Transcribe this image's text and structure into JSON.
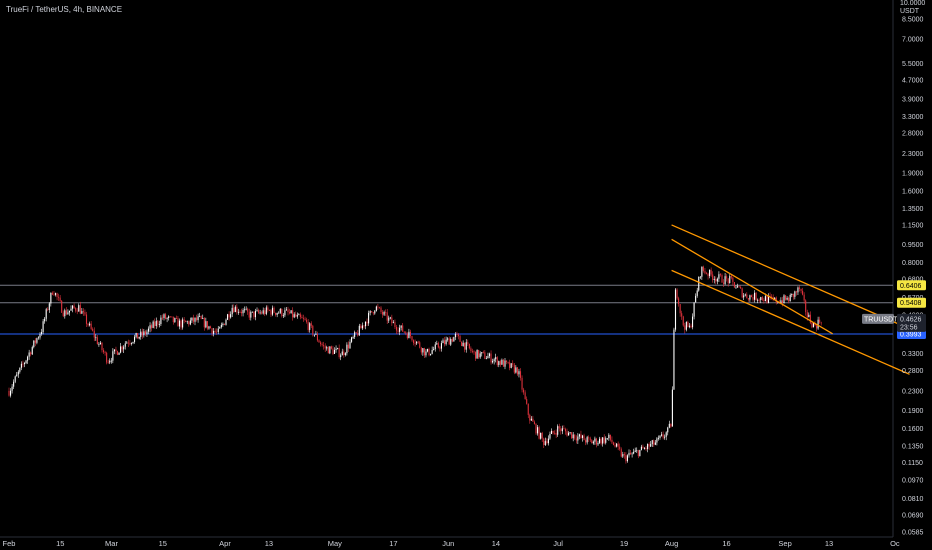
{
  "header": {
    "symbol_title": "TrueFi / TetherUS, 4h, BINANCE"
  },
  "axis": {
    "currency_top": "10.0000",
    "currency_unit": "USDT"
  },
  "chart_data": {
    "type": "candlestick",
    "title": "TrueFi / TetherUS, 4h, BINANCE",
    "y_scale": "log",
    "ylim": [
      0.0585,
      10.0
    ],
    "y_ticks": [
      "8.5000",
      "7.0000",
      "5.5000",
      "4.7000",
      "3.9000",
      "3.3000",
      "2.8000",
      "2.3000",
      "1.9000",
      "1.6000",
      "1.3500",
      "1.1500",
      "0.9500",
      "0.8000",
      "0.6800",
      "0.5700",
      "0.4800",
      "0.4100",
      "0.3300",
      "0.2800",
      "0.2300",
      "0.1900",
      "0.1600",
      "0.1350",
      "0.1150",
      "0.0970",
      "0.0810",
      "0.0690",
      "0.0585"
    ],
    "x_ticks": [
      "Feb",
      "15",
      "Mar",
      "15",
      "Apr",
      "13",
      "May",
      "17",
      "Jun",
      "14",
      "Jul",
      "19",
      "Aug",
      "16",
      "Sep",
      "13",
      "Oc"
    ],
    "close_path": [
      [
        "Feb 1",
        0.23
      ],
      [
        "Feb 5",
        0.3
      ],
      [
        "Feb 10",
        0.42
      ],
      [
        "Feb 13",
        0.62
      ],
      [
        "Feb 16",
        0.49
      ],
      [
        "Feb 20",
        0.52
      ],
      [
        "Feb 24",
        0.4
      ],
      [
        "Feb 28",
        0.31
      ],
      [
        "Mar 5",
        0.37
      ],
      [
        "Mar 10",
        0.4
      ],
      [
        "Mar 15",
        0.47
      ],
      [
        "Mar 20",
        0.44
      ],
      [
        "Mar 25",
        0.46
      ],
      [
        "Mar 30",
        0.4
      ],
      [
        "Apr 3",
        0.52
      ],
      [
        "Apr 8",
        0.48
      ],
      [
        "Apr 13",
        0.5
      ],
      [
        "Apr 18",
        0.49
      ],
      [
        "Apr 23",
        0.45
      ],
      [
        "Apr 28",
        0.35
      ],
      [
        "May 3",
        0.33
      ],
      [
        "May 8",
        0.42
      ],
      [
        "May 12",
        0.52
      ],
      [
        "May 17",
        0.44
      ],
      [
        "May 22",
        0.39
      ],
      [
        "May 26",
        0.33
      ],
      [
        "May 30",
        0.36
      ],
      [
        "Jun 3",
        0.39
      ],
      [
        "Jun 8",
        0.33
      ],
      [
        "Jun 12",
        0.32
      ],
      [
        "Jun 16",
        0.3
      ],
      [
        "Jun 20",
        0.28
      ],
      [
        "Jun 23",
        0.18
      ],
      [
        "Jun 27",
        0.14
      ],
      [
        "Jul 1",
        0.16
      ],
      [
        "Jul 5",
        0.15
      ],
      [
        "Jul 10",
        0.14
      ],
      [
        "Jul 15",
        0.145
      ],
      [
        "Jul 19",
        0.12
      ],
      [
        "Jul 24",
        0.13
      ],
      [
        "Jul 28",
        0.14
      ],
      [
        "Jul 31",
        0.155
      ],
      [
        "Aug 1",
        0.17
      ],
      [
        "Aug 2",
        0.65
      ],
      [
        "Aug 4",
        0.44
      ],
      [
        "Aug 6",
        0.42
      ],
      [
        "Aug 9",
        0.75
      ],
      [
        "Aug 13",
        0.69
      ],
      [
        "Aug 17",
        0.67
      ],
      [
        "Aug 21",
        0.58
      ],
      [
        "Aug 25",
        0.57
      ],
      [
        "Aug 29",
        0.55
      ],
      [
        "Sep 2",
        0.56
      ],
      [
        "Sep 5",
        0.62
      ],
      [
        "Sep 7",
        0.48
      ],
      [
        "Sep 9",
        0.43
      ],
      [
        "Sep 11",
        0.4626
      ]
    ],
    "horizontal_levels": [
      {
        "label": "0.6406",
        "value": 0.6406,
        "color": "#f5e642",
        "line": "#787b86"
      },
      {
        "label": "0.5408",
        "value": 0.5408,
        "color": "#f5e642",
        "line": "#787b86"
      },
      {
        "label": "0.3993",
        "value": 0.3993,
        "color": "#2962ff",
        "line": "#2962ff"
      }
    ],
    "descending_channel": {
      "color": "#ff9800",
      "upper": [
        [
          "Aug 1",
          1.15
        ],
        [
          "Oct 5",
          0.42
        ]
      ],
      "lower": [
        [
          "Aug 1",
          0.74
        ],
        [
          "Oct 5",
          0.27
        ]
      ],
      "mid": [
        [
          "Aug 1",
          1.0
        ],
        [
          "Sep 14",
          0.4
        ]
      ]
    },
    "last_price": {
      "symbol": "TRUUSDT",
      "value": "0.4626",
      "countdown": "23:56"
    },
    "grid": false,
    "up_color": "#ffffff",
    "down_color": "#e0323c"
  }
}
